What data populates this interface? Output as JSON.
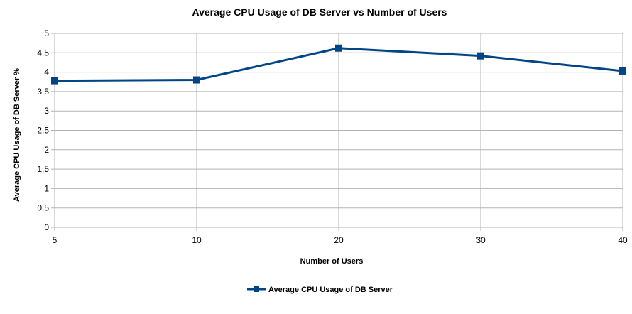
{
  "chart_data": {
    "type": "line",
    "title": "Average CPU Usage of DB Server vs Number of Users",
    "xlabel": "Number of Users",
    "ylabel": "Average CPU Usage of DB Server %",
    "categories": [
      "5",
      "10",
      "20",
      "30",
      "40"
    ],
    "series": [
      {
        "name": "Average CPU Usage of DB Server",
        "values": [
          3.78,
          3.8,
          4.62,
          4.42,
          4.03
        ],
        "color": "#004586"
      }
    ],
    "ylim": [
      0,
      5
    ],
    "yticks": [
      "0",
      "0.5",
      "1",
      "1.5",
      "2",
      "2.5",
      "3",
      "3.5",
      "4",
      "4.5",
      "5"
    ],
    "ytick_values": [
      0,
      0.5,
      1,
      1.5,
      2,
      2.5,
      3,
      3.5,
      4,
      4.5,
      5
    ],
    "grid": true,
    "legend_position": "bottom"
  }
}
